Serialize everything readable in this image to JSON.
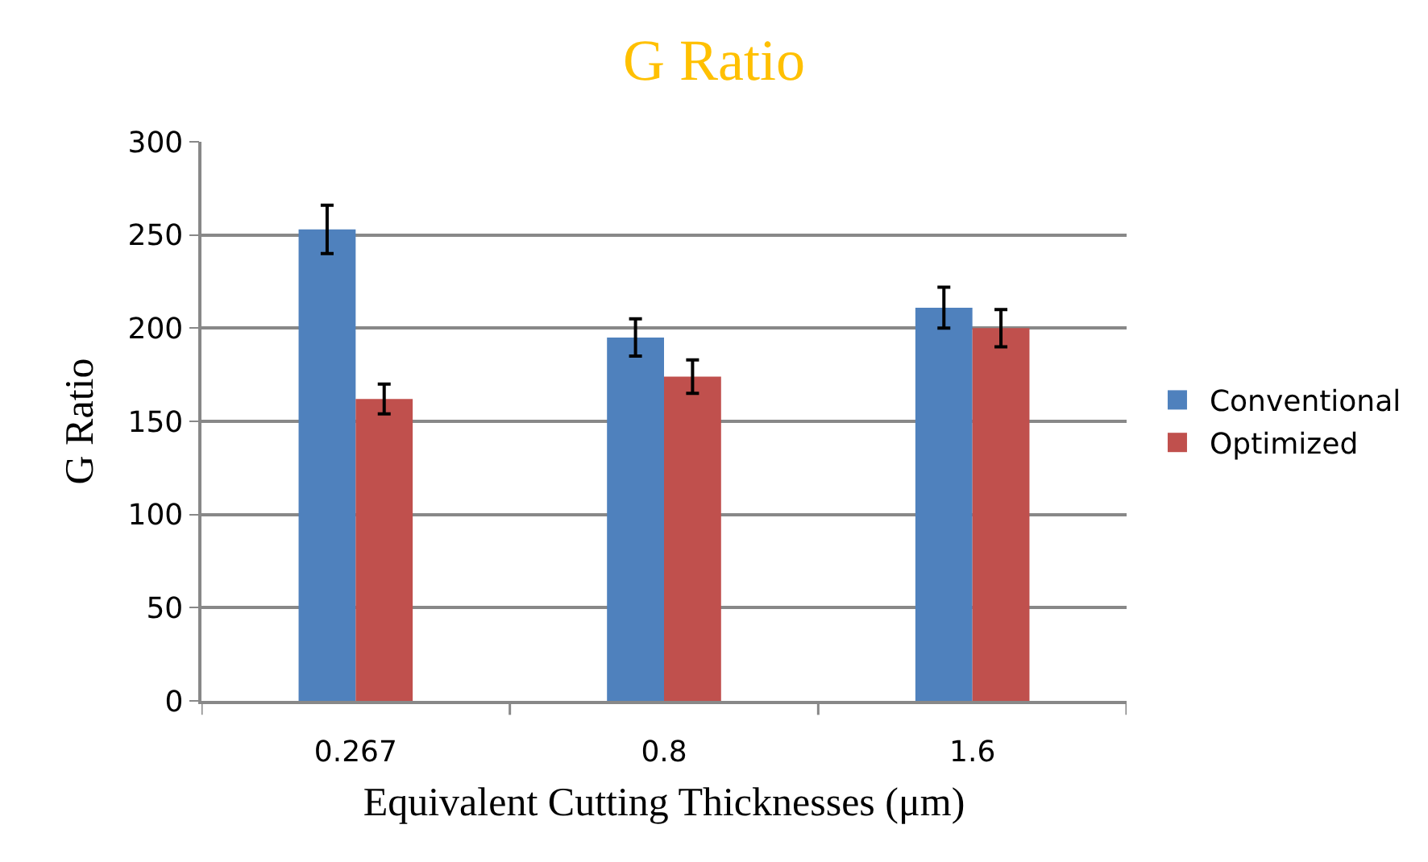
{
  "chart_data": {
    "type": "bar",
    "title": "G Ratio",
    "xlabel": "Equivalent Cutting Thicknesses (μm)",
    "ylabel": "G Ratio",
    "categories": [
      "0.267",
      "0.8",
      "1.6"
    ],
    "series": [
      {
        "name": "Conventional",
        "color": "#4f81bd",
        "values": [
          253,
          195,
          211
        ],
        "errors": [
          13,
          10,
          11
        ]
      },
      {
        "name": "Optimized",
        "color": "#c0504d",
        "values": [
          162,
          174,
          200
        ],
        "errors": [
          8,
          9,
          10
        ]
      }
    ],
    "ylim": [
      0,
      300
    ],
    "yticks": [
      0,
      50,
      100,
      150,
      200,
      250,
      300
    ],
    "grid": "y",
    "legend": "right"
  }
}
